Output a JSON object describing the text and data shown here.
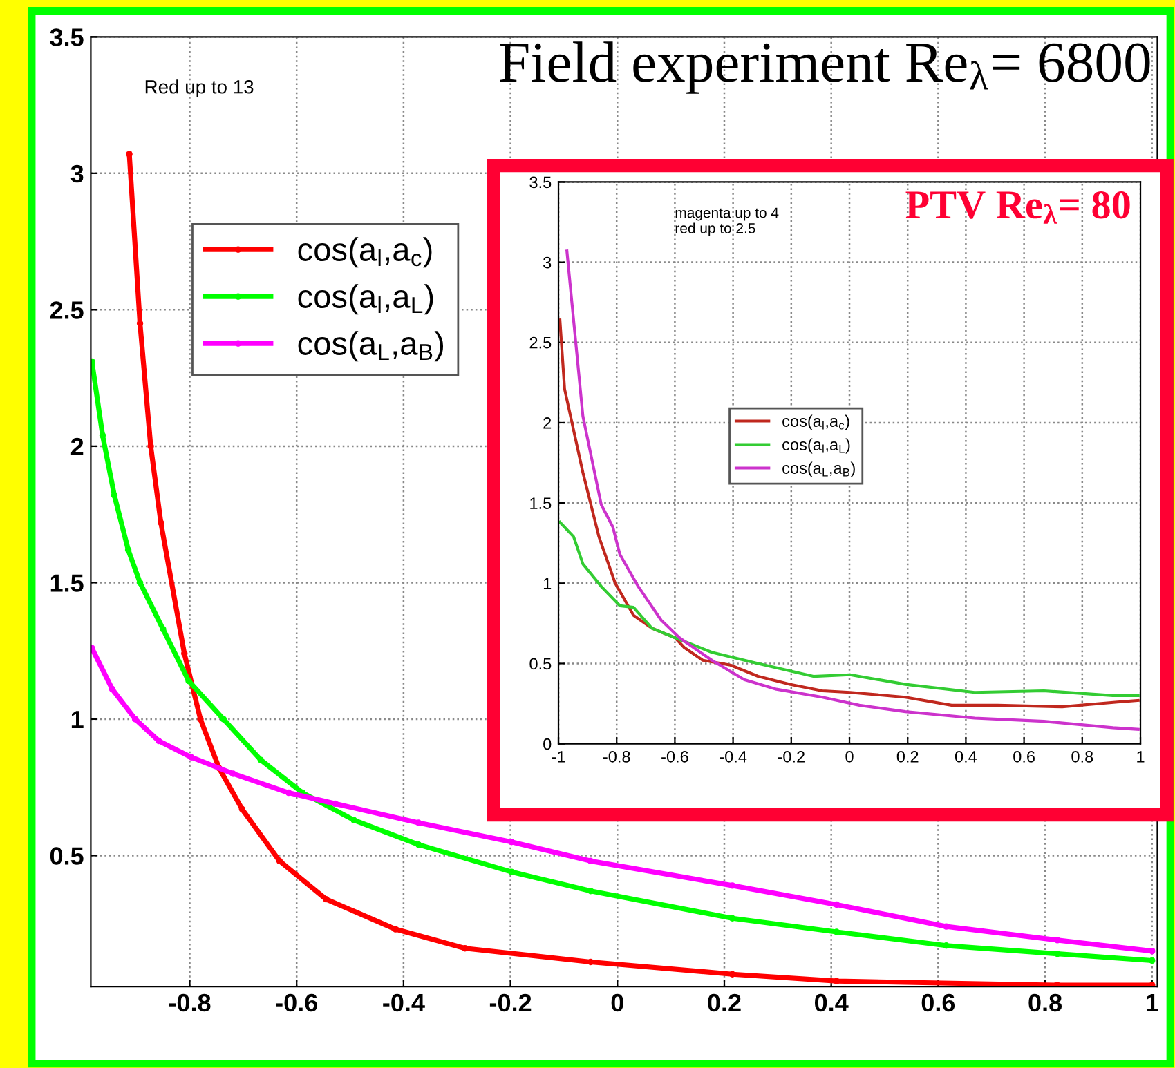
{
  "chart_data": [
    {
      "type": "line",
      "title": "Field experiment Re$_{λ}$= 6800",
      "annotations": [
        "Red up to 13"
      ],
      "xlim": [
        -0.985,
        1.01
      ],
      "ylim": [
        0.02,
        3.5
      ],
      "xticks": [
        -0.8,
        -0.6,
        -0.4,
        -0.2,
        0,
        0.2,
        0.4,
        0.6,
        0.8,
        1
      ],
      "yticks": [
        0.5,
        1,
        1.5,
        2,
        2.5,
        3,
        3.5
      ],
      "grid": true,
      "legend": "top left",
      "marker": "circle",
      "line_style": "solid",
      "series": [
        {
          "name": "cos(a$_{l}$,a$_{c}$)",
          "color": "#ff0000",
          "x": [
            -0.913,
            -0.893,
            -0.873,
            -0.854,
            -0.81,
            -0.78,
            -0.745,
            -0.702,
            -0.632,
            -0.545,
            -0.415,
            -0.285,
            -0.05,
            0.215,
            0.41,
            0.823,
            1.0
          ],
          "values": [
            3.07,
            2.45,
            2.0,
            1.72,
            1.24,
            1.0,
            0.82,
            0.67,
            0.48,
            0.34,
            0.23,
            0.16,
            0.11,
            0.065,
            0.04,
            0.025,
            0.025
          ]
        },
        {
          "name": "cos(a$_{l}$,a$_{L}$)",
          "color": "#00ff00",
          "x": [
            -0.983,
            -0.963,
            -0.941,
            -0.915,
            -0.893,
            -0.85,
            -0.802,
            -0.737,
            -0.667,
            -0.589,
            -0.493,
            -0.372,
            -0.198,
            -0.05,
            0.215,
            0.41,
            0.615,
            0.823,
            1.0
          ],
          "values": [
            2.31,
            2.04,
            1.82,
            1.62,
            1.5,
            1.33,
            1.14,
            1.0,
            0.85,
            0.73,
            0.63,
            0.54,
            0.44,
            0.37,
            0.27,
            0.22,
            0.17,
            0.14,
            0.115
          ]
        },
        {
          "name": "cos(a$_{L}$,a$_{B}$)",
          "color": "#ff00ff",
          "x": [
            -0.983,
            -0.945,
            -0.902,
            -0.858,
            -0.797,
            -0.719,
            -0.615,
            -0.528,
            -0.372,
            -0.198,
            -0.05,
            0.215,
            0.41,
            0.615,
            0.823,
            1.0
          ],
          "values": [
            1.26,
            1.11,
            1.0,
            0.92,
            0.86,
            0.8,
            0.73,
            0.69,
            0.62,
            0.55,
            0.48,
            0.39,
            0.32,
            0.24,
            0.19,
            0.15
          ]
        }
      ]
    },
    {
      "type": "line",
      "title": "PTV Re$_{λ}$= 80",
      "annotations": [
        "magenta up to 4\nred up to 2.5"
      ],
      "xlim": [
        -1,
        1
      ],
      "ylim": [
        0,
        3.5
      ],
      "xticks": [
        -1,
        -0.8,
        -0.6,
        -0.4,
        -0.2,
        0,
        0.2,
        0.4,
        0.6,
        0.8,
        1
      ],
      "yticks": [
        0,
        0.5,
        1,
        1.5,
        2,
        2.5,
        3,
        3.5
      ],
      "grid": true,
      "legend": "center",
      "line_style": "solid",
      "series": [
        {
          "name": "cos(a$_{l}$,a$_{c}$)",
          "color": "#c0281e",
          "x": [
            -0.995,
            -0.979,
            -0.916,
            -0.861,
            -0.805,
            -0.742,
            -0.679,
            -0.599,
            -0.568,
            -0.504,
            -0.409,
            -0.314,
            -0.203,
            -0.093,
            0.002,
            0.192,
            0.351,
            0.509,
            0.731,
            0.921,
            0.992
          ],
          "values": [
            2.64,
            2.21,
            1.69,
            1.29,
            1.0,
            0.8,
            0.72,
            0.66,
            0.6,
            0.52,
            0.49,
            0.42,
            0.37,
            0.33,
            0.32,
            0.29,
            0.24,
            0.24,
            0.23,
            0.26,
            0.27
          ]
        },
        {
          "name": "cos(a$_{l}$,a$_{L}$)",
          "color": "#33cc33",
          "x": [
            -0.995,
            -0.948,
            -0.916,
            -0.853,
            -0.789,
            -0.742,
            -0.679,
            -0.599,
            -0.473,
            -0.314,
            -0.124,
            0.002,
            0.192,
            0.43,
            0.668,
            0.905,
            0.992
          ],
          "values": [
            1.38,
            1.29,
            1.12,
            0.98,
            0.86,
            0.85,
            0.72,
            0.66,
            0.57,
            0.5,
            0.42,
            0.43,
            0.37,
            0.32,
            0.33,
            0.3,
            0.3
          ]
        },
        {
          "name": "cos(a$_{L}$,a$_{B}$)",
          "color": "#cc33cc",
          "x": [
            -0.971,
            -0.916,
            -0.853,
            -0.813,
            -0.789,
            -0.726,
            -0.647,
            -0.584,
            -0.473,
            -0.362,
            -0.251,
            -0.093,
            0.034,
            0.192,
            0.43,
            0.668,
            0.905,
            0.992
          ],
          "values": [
            3.07,
            2.04,
            1.49,
            1.35,
            1.18,
            0.98,
            0.77,
            0.66,
            0.52,
            0.4,
            0.34,
            0.29,
            0.24,
            0.2,
            0.16,
            0.14,
            0.1,
            0.09
          ]
        }
      ]
    }
  ]
}
